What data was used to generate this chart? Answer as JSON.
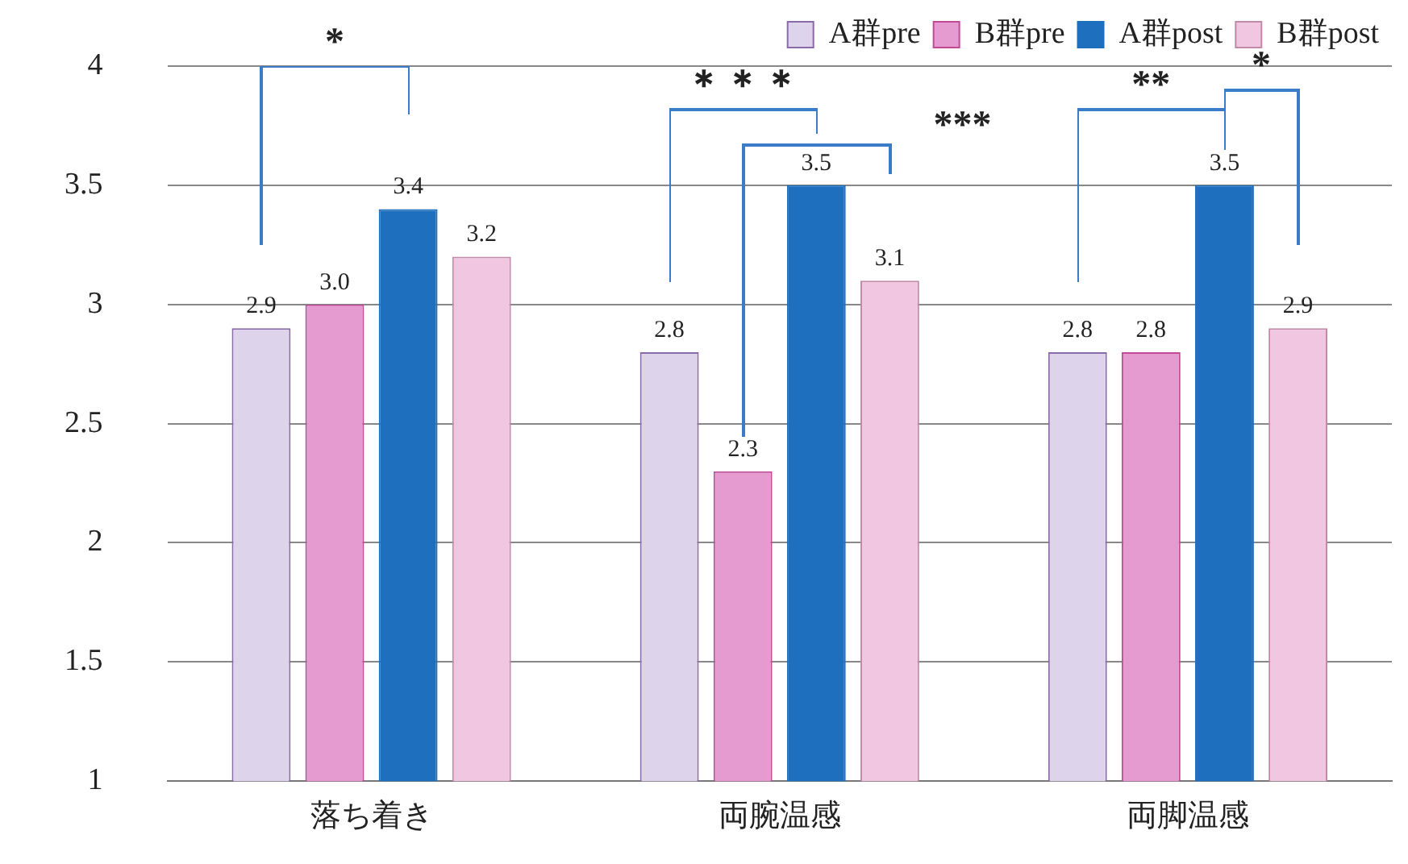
{
  "chart_data": {
    "type": "bar",
    "categories": [
      "落ち着き",
      "両腕温感",
      "両脚温感"
    ],
    "series": [
      {
        "name": "A群pre",
        "color": "#ddd3ea",
        "values": [
          2.9,
          2.8,
          2.8
        ],
        "value_labels": [
          "2.9",
          "2.8",
          "2.8"
        ]
      },
      {
        "name": "B群pre",
        "color": "#e59ad0",
        "values": [
          3,
          2.3,
          2.8
        ],
        "value_labels": [
          "3.0",
          "2.3",
          "2.8"
        ]
      },
      {
        "name": "A群post",
        "color": "#1f6fbf",
        "values": [
          3.4,
          3.5,
          3.5
        ],
        "value_labels": [
          "3.4",
          "3.5",
          "3.5"
        ]
      },
      {
        "name": "B群post",
        "color": "#f0c6e0",
        "values": [
          3.2,
          3.1,
          2.9
        ],
        "value_labels": [
          "3.2",
          "3.1",
          "2.9"
        ]
      }
    ],
    "ylim": [
      1,
      4
    ],
    "yticks": [
      1,
      1.5,
      2,
      2.5,
      3,
      3.5,
      4
    ],
    "grid": "y",
    "legend": "top right",
    "annotations": [
      "*",
      "＊＊＊",
      "***",
      "**",
      "*"
    ]
  }
}
